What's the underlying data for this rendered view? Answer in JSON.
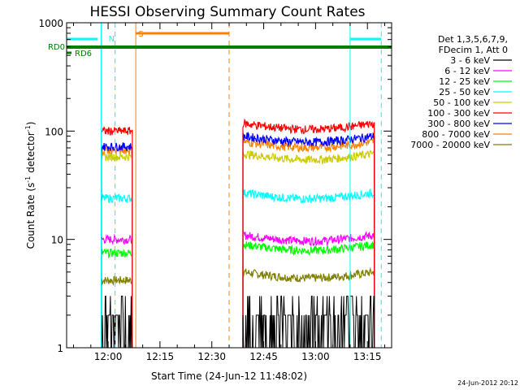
{
  "chart_data": {
    "type": "line",
    "title": "HESSI Observing Summary Count Rates",
    "xlabel": "Start Time (24-Jun-12 11:48:02)",
    "ylabel_main": "Count Rate (s",
    "ylabel_sup1": "-1",
    "ylabel_mid": " detector",
    "ylabel_sup2": "-1",
    "ylabel_end": ")",
    "ylog": true,
    "ylim": [
      1,
      1000
    ],
    "xlim_minutes": [
      -12,
      82
    ],
    "x_tick_labels": [
      "12:00",
      "12:15",
      "12:30",
      "12:45",
      "13:00",
      "13:15"
    ],
    "x_tick_minutes": [
      0,
      15,
      30,
      45,
      60,
      75
    ],
    "y_ticks": [
      1,
      10,
      100,
      1000
    ],
    "y_tick_labels": [
      "1",
      "10",
      "100",
      "1000"
    ],
    "legend_header": [
      "Det 1,3,5,6,7,9,",
      "FDecim 1, Att 0"
    ],
    "series": [
      {
        "name": "3 - 6 keV",
        "color": "#000000",
        "levels": [
          1.6,
          1.6
        ]
      },
      {
        "name": "6 - 12 keV",
        "color": "#ff00ff",
        "levels": [
          10,
          11
        ]
      },
      {
        "name": "12 - 25 keV",
        "color": "#00ff00",
        "levels": [
          7.5,
          9
        ]
      },
      {
        "name": "25 - 50 keV",
        "color": "#00ffff",
        "levels": [
          24,
          27
        ]
      },
      {
        "name": "50 - 100 keV",
        "color": "#cccc00",
        "levels": [
          58,
          62
        ]
      },
      {
        "name": "100 - 300 keV",
        "color": "#ff0000",
        "levels": [
          100,
          118
        ]
      },
      {
        "name": "300 - 800 keV",
        "color": "#0000ff",
        "levels": [
          72,
          90
        ]
      },
      {
        "name": "800 - 7000 keV",
        "color": "#ff8000",
        "levels": [
          67,
          80
        ]
      },
      {
        "name": "7000 - 20000 keV",
        "color": "#808000",
        "levels": [
          4.2,
          5
        ]
      }
    ],
    "data_intervals_minutes": [
      [
        -2,
        7
      ],
      [
        39,
        77
      ]
    ],
    "flags": [
      {
        "label": "N",
        "color": "#00ffff"
      },
      {
        "label": "S",
        "color": "#ff8000"
      },
      {
        "label": "RD0",
        "color": "#008000"
      },
      {
        "label": "RD6",
        "color": "#008000"
      }
    ],
    "timestamp": "24-Jun-2012 20:12"
  }
}
